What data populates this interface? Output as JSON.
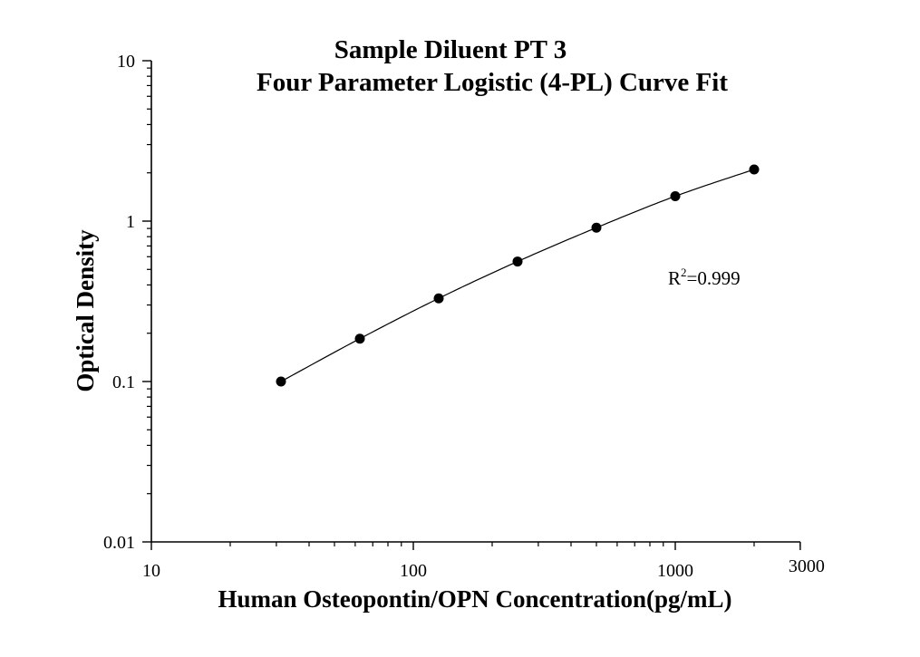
{
  "chart_data": {
    "type": "scatter",
    "title": "Sample Diluent PT 3",
    "subtitle": "Four Parameter Logistic (4-PL) Curve Fit",
    "xlabel": "Human Osteopontin/OPN Concentration(pg/mL)",
    "ylabel": "Optical Density",
    "xscale": "log",
    "yscale": "log",
    "xlim": [
      10,
      3000
    ],
    "ylim": [
      0.01,
      10
    ],
    "x_ticks": [
      {
        "value": 10,
        "label": "10"
      },
      {
        "value": 100,
        "label": "100"
      },
      {
        "value": 1000,
        "label": "1000"
      },
      {
        "value": 3000,
        "label": "3000"
      }
    ],
    "y_ticks": [
      {
        "value": 0.01,
        "label": "0.01"
      },
      {
        "value": 0.1,
        "label": "0.1"
      },
      {
        "value": 1,
        "label": "1"
      },
      {
        "value": 10,
        "label": "10"
      }
    ],
    "grid": false,
    "series": [
      {
        "points": [
          {
            "x": 31.25,
            "y": 0.1
          },
          {
            "x": 62.5,
            "y": 0.185
          },
          {
            "x": 125,
            "y": 0.33
          },
          {
            "x": 250,
            "y": 0.56
          },
          {
            "x": 500,
            "y": 0.91
          },
          {
            "x": 1000,
            "y": 1.43
          },
          {
            "x": 2000,
            "y": 2.1
          }
        ],
        "marker_color": "#000000",
        "fit": "4-PL"
      }
    ],
    "annotation": {
      "base": "R",
      "superscript": "2",
      "value": "=0.999"
    }
  }
}
